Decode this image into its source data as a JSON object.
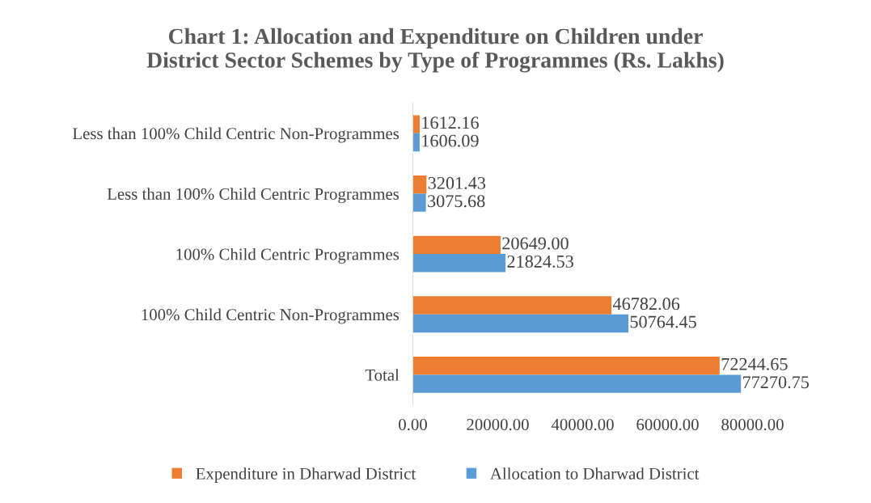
{
  "chart_data": {
    "type": "bar",
    "orientation": "horizontal",
    "title": "Chart 1: Allocation and Expenditure on Children under\nDistrict Sector Schemes by Type of Programmes (Rs. Lakhs)",
    "categories": [
      "Less than 100% Child Centric Non-Programmes",
      "Less than 100% Child Centric Programmes",
      "100% Child Centric Programmes",
      "100% Child Centric Non-Programmes",
      "Total"
    ],
    "series": [
      {
        "name": "Expenditure in Dharwad District",
        "color": "#ed7d31",
        "values": [
          1612.16,
          3201.43,
          20649.0,
          46782.06,
          72244.65
        ],
        "value_labels": [
          "1612.16",
          "3201.43",
          "20649.00",
          "46782.06",
          "72244.65"
        ]
      },
      {
        "name": "Allocation to Dharwad District",
        "color": "#5b9bd5",
        "values": [
          1606.09,
          3075.68,
          21824.53,
          50764.45,
          77270.75
        ],
        "value_labels": [
          "1606.09",
          "3075.68",
          "21824.53",
          "50764.45",
          "77270.75"
        ]
      }
    ],
    "xlim": [
      0,
      80000
    ],
    "xticks": [
      {
        "value": 0,
        "label": "0.00"
      },
      {
        "value": 20000,
        "label": "20000.00"
      },
      {
        "value": 40000,
        "label": "40000.00"
      },
      {
        "value": 60000,
        "label": "60000.00"
      },
      {
        "value": 80000,
        "label": "80000.00"
      }
    ],
    "grid": false,
    "legend": "bottom"
  }
}
